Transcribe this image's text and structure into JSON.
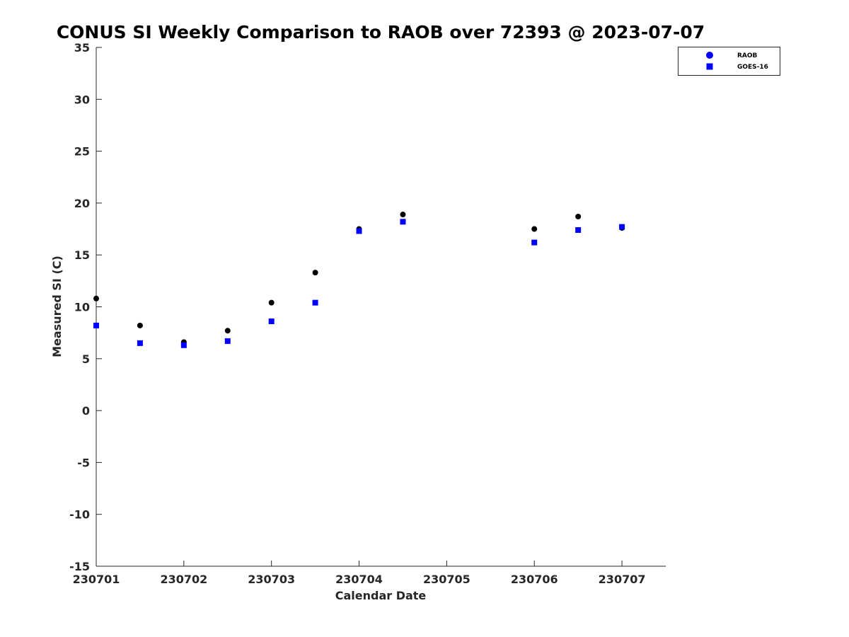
{
  "chart_data": {
    "type": "scatter",
    "title": "CONUS SI Weekly Comparison to RAOB over 72393 @ 2023-07-07",
    "xlabel": "Calendar Date",
    "ylabel": "Measured SI (C)",
    "xlim": [
      230701,
      230707.5
    ],
    "ylim": [
      -15,
      35
    ],
    "yticks": [
      -15,
      -10,
      -5,
      0,
      5,
      10,
      15,
      20,
      25,
      30,
      35
    ],
    "xticks": [
      230701,
      230702,
      230703,
      230704,
      230705,
      230706,
      230707
    ],
    "xtick_labels": [
      "230701",
      "230702",
      "230703",
      "230704",
      "230705",
      "230706",
      "230707"
    ],
    "grid": false,
    "legend_position": "top-right",
    "series": [
      {
        "name": "RAOB",
        "marker": "circle",
        "color": "#000000",
        "legend_color": "#0000ff",
        "x": [
          230701,
          230701.5,
          230702,
          230702.5,
          230703,
          230703.5,
          230704,
          230704.5,
          230706,
          230706.5,
          230707
        ],
        "y": [
          10.8,
          8.2,
          6.6,
          7.7,
          10.4,
          13.3,
          17.5,
          18.9,
          17.5,
          18.7,
          17.6
        ]
      },
      {
        "name": "GOES-16",
        "marker": "square",
        "color": "#0000ff",
        "x": [
          230701,
          230701.5,
          230702,
          230702.5,
          230703,
          230703.5,
          230704,
          230704.5,
          230706,
          230706.5,
          230707
        ],
        "y": [
          8.2,
          6.5,
          6.3,
          6.7,
          8.6,
          10.4,
          17.3,
          18.2,
          16.2,
          17.4,
          17.7
        ]
      }
    ]
  }
}
